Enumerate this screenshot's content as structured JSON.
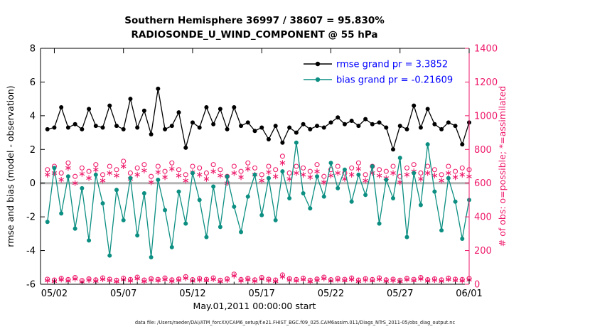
{
  "page": {
    "background": "#ffffff"
  },
  "chart_data": {
    "type": "line",
    "title_line1": "Southern Hemisphere 36997 / 38607 = 95.830%",
    "title_line2": "RADIOSONDE_U_WIND_COMPONENT @ 55 hPa",
    "xlabel": "May.01,2011 00:00:00 start",
    "ylabel_left": "rmse and bias (model - observation)",
    "ylabel_right": "# of obs: o=possible; *=assimilated",
    "caption": "data file: /Users/raeder/DAI/ATM_forcXX/CAM6_setup/f.e21.FHIST_BGC.f09_025.CAM6assim.011/Diags_NTrS_2011-05/obs_diag_output.nc",
    "x_range": [
      0,
      31
    ],
    "ylim_left": [
      -6,
      8
    ],
    "ylim_right": [
      0,
      1400
    ],
    "yticks_left": [
      -6,
      -4,
      -2,
      0,
      2,
      4,
      6,
      8
    ],
    "yticks_right": [
      0,
      200,
      400,
      600,
      800,
      1000,
      1200,
      1400
    ],
    "xticks": [
      {
        "label": "05/02",
        "day": 1
      },
      {
        "label": "05/07",
        "day": 6
      },
      {
        "label": "05/12",
        "day": 11
      },
      {
        "label": "05/17",
        "day": 16
      },
      {
        "label": "05/22",
        "day": 21
      },
      {
        "label": "05/27",
        "day": 26
      },
      {
        "label": "06/01",
        "day": 31
      }
    ],
    "legend": [
      {
        "label": "rmse grand pr = 3.3852",
        "color": "#000000"
      },
      {
        "label": "bias grand pr = -0.21609",
        "color": "#0c8f82"
      }
    ],
    "legend_text_color": "#0000ff",
    "colors": {
      "rmse": "#000000",
      "bias": "#0c8f82",
      "obs": "#ee1a6b",
      "zero_line": "#b5b5b5",
      "axis": "#000000"
    },
    "x_days": [
      0.5,
      1.0,
      1.5,
      2.0,
      2.5,
      3.0,
      3.5,
      4.0,
      4.5,
      5.0,
      5.5,
      6.0,
      6.5,
      7.0,
      7.5,
      8.0,
      8.5,
      9.0,
      9.5,
      10.0,
      10.5,
      11.0,
      11.5,
      12.0,
      12.5,
      13.0,
      13.5,
      14.0,
      14.5,
      15.0,
      15.5,
      16.0,
      16.5,
      17.0,
      17.5,
      18.0,
      18.5,
      19.0,
      19.5,
      20.0,
      20.5,
      21.0,
      21.5,
      22.0,
      22.5,
      23.0,
      23.5,
      24.0,
      24.5,
      25.0,
      25.5,
      26.0,
      26.5,
      27.0,
      27.5,
      28.0,
      28.5,
      29.0,
      29.5,
      30.0,
      30.5,
      31.0
    ],
    "series": [
      {
        "name": "rmse",
        "values": [
          3.2,
          3.3,
          4.5,
          3.3,
          3.5,
          3.2,
          4.4,
          3.4,
          3.3,
          4.6,
          3.4,
          3.2,
          5.0,
          3.3,
          4.3,
          2.9,
          5.6,
          3.2,
          3.4,
          4.2,
          2.1,
          3.6,
          3.3,
          4.5,
          3.5,
          4.4,
          3.2,
          4.5,
          3.4,
          3.6,
          3.1,
          3.3,
          2.6,
          3.4,
          2.4,
          3.3,
          3.0,
          3.5,
          3.2,
          3.4,
          3.3,
          3.6,
          3.9,
          3.5,
          3.7,
          3.4,
          3.8,
          3.5,
          3.6,
          3.3,
          2.0,
          3.4,
          3.2,
          4.6,
          3.3,
          4.4,
          3.5,
          3.2,
          3.6,
          3.4,
          2.3,
          3.6
        ]
      },
      {
        "name": "bias",
        "values": [
          -2.3,
          0.9,
          -1.8,
          0.4,
          -2.7,
          -0.3,
          -3.4,
          0.5,
          -1.2,
          -4.3,
          -0.4,
          -2.2,
          0.3,
          -3.1,
          -0.6,
          -4.4,
          0.2,
          -1.6,
          -3.8,
          -0.5,
          -2.4,
          0.6,
          -1.0,
          -3.2,
          -0.2,
          -2.6,
          0.4,
          -1.4,
          -2.9,
          -0.8,
          0.5,
          -1.9,
          0.3,
          -2.2,
          0.7,
          -0.9,
          2.4,
          -0.6,
          -1.5,
          0.4,
          -0.8,
          1.2,
          -0.3,
          0.8,
          -1.1,
          0.5,
          -0.7,
          1.0,
          -2.4,
          0.2,
          -0.9,
          1.5,
          -3.2,
          0.6,
          -1.3,
          2.3,
          -0.5,
          -2.8,
          0.3,
          -1.1,
          -3.3,
          -1.0
        ]
      }
    ],
    "obs_counts": {
      "possible": [
        680,
        700,
        660,
        720,
        640,
        690,
        670,
        710,
        650,
        700,
        680,
        730,
        660,
        690,
        710,
        640,
        700,
        670,
        720,
        680,
        650,
        700,
        690,
        660,
        710,
        680,
        640,
        700,
        670,
        720,
        690,
        650,
        700,
        680,
        760,
        660,
        700,
        690,
        670,
        710,
        640,
        680,
        700,
        660,
        690,
        720,
        650,
        700,
        680,
        670,
        700,
        640,
        690,
        710,
        660,
        700,
        680,
        650,
        700,
        670,
        690,
        680
      ],
      "assimilated": [
        650,
        660,
        620,
        690,
        600,
        655,
        630,
        680,
        615,
        660,
        645,
        700,
        625,
        650,
        675,
        605,
        665,
        635,
        685,
        645,
        615,
        665,
        650,
        625,
        670,
        645,
        600,
        660,
        635,
        685,
        650,
        615,
        665,
        640,
        720,
        625,
        660,
        650,
        635,
        670,
        605,
        645,
        660,
        625,
        650,
        685,
        615,
        660,
        645,
        630,
        660,
        605,
        650,
        670,
        625,
        660,
        645,
        615,
        660,
        635,
        650,
        640
      ],
      "possible_low": [
        30,
        25,
        35,
        28,
        40,
        22,
        32,
        26,
        38,
        30,
        24,
        36,
        28,
        42,
        25,
        33,
        29,
        37,
        26,
        31,
        45,
        27,
        34,
        29,
        38,
        24,
        32,
        60,
        28,
        35,
        26,
        40,
        30,
        25,
        55,
        33,
        28,
        36,
        24,
        31,
        42,
        27,
        34,
        29,
        37,
        25,
        33,
        28,
        38,
        26,
        30,
        24,
        35,
        29,
        40,
        27,
        32,
        26,
        36,
        30,
        28,
        34
      ],
      "assimilated_low": [
        22,
        18,
        28,
        20,
        32,
        15,
        25,
        19,
        30,
        23,
        17,
        28,
        21,
        34,
        18,
        26,
        22,
        29,
        19,
        24,
        36,
        20,
        27,
        22,
        30,
        17,
        25,
        50,
        21,
        28,
        19,
        32,
        23,
        18,
        45,
        26,
        21,
        29,
        17,
        24,
        34,
        20,
        27,
        22,
        29,
        18,
        26,
        21,
        30,
        19,
        23,
        17,
        28,
        22,
        32,
        20,
        25,
        19,
        29,
        23,
        21,
        27
      ]
    }
  }
}
